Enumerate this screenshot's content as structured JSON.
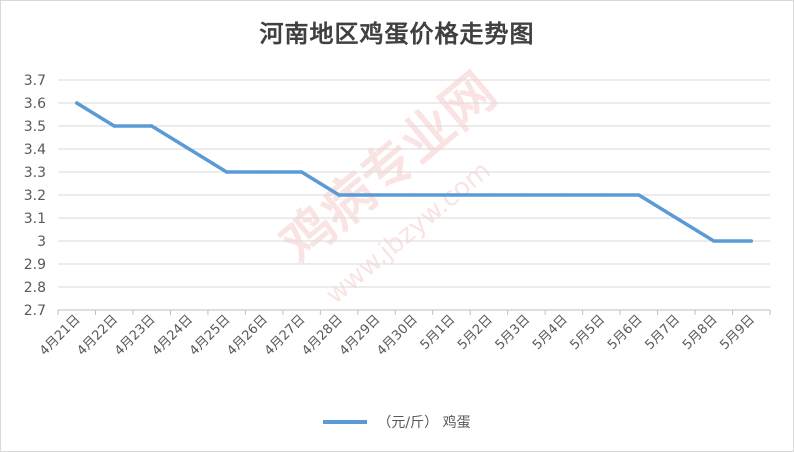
{
  "chart_data": {
    "type": "line",
    "title": "河南地区鸡蛋价格走势图",
    "categories": [
      "4月21日",
      "4月22日",
      "4月23日",
      "4月24日",
      "4月25日",
      "4月26日",
      "4月27日",
      "4月28日",
      "4月29日",
      "4月30日",
      "5月1日",
      "5月2日",
      "5月3日",
      "5月4日",
      "5月5日",
      "5月6日",
      "5月7日",
      "5月8日",
      "5月9日"
    ],
    "series": [
      {
        "name": "（元/斤） 鸡蛋",
        "values": [
          3.6,
          3.5,
          3.5,
          3.4,
          3.3,
          3.3,
          3.3,
          3.2,
          3.2,
          3.2,
          3.2,
          3.2,
          3.2,
          3.2,
          3.2,
          3.2,
          3.1,
          3.0,
          3.0
        ]
      }
    ],
    "ylim": [
      2.7,
      3.7
    ],
    "yticks": [
      "2.7",
      "2.8",
      "2.9",
      "3",
      "3.1",
      "3.2",
      "3.3",
      "3.4",
      "3.5",
      "3.6",
      "3.7"
    ],
    "grid": true,
    "legend": "bottom",
    "line_color": "#5b9bd5"
  },
  "watermark": {
    "text_main": "鸡病专业网",
    "text_url": "www.jbzyw.com"
  }
}
